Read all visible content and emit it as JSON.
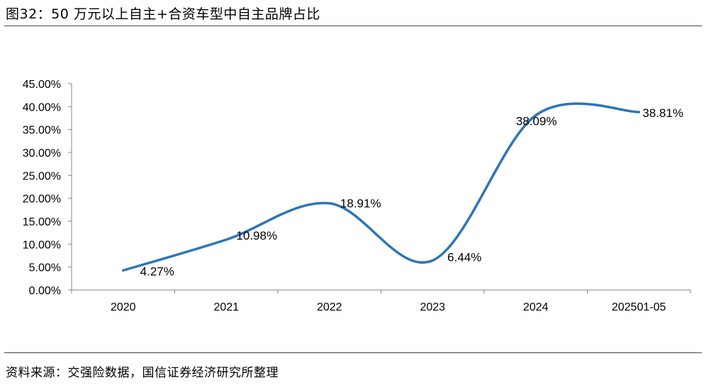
{
  "header": {
    "title": "图32：50 万元以上自主+合资车型中自主品牌占比"
  },
  "footer": {
    "source": "资料来源：交强险数据，国信证券经济研究所整理"
  },
  "chart_data": {
    "type": "line",
    "categories": [
      "2020",
      "2021",
      "2022",
      "2023",
      "2024",
      "202501-05"
    ],
    "values": [
      4.27,
      10.98,
      18.91,
      6.44,
      38.09,
      38.81
    ],
    "data_labels": [
      "4.27%",
      "10.98%",
      "18.91%",
      "6.44%",
      "38.09%",
      "38.81%"
    ],
    "ylim": [
      0,
      45
    ],
    "yticks": [
      "0.00%",
      "5.00%",
      "10.00%",
      "15.00%",
      "20.00%",
      "25.00%",
      "30.00%",
      "35.00%",
      "40.00%",
      "45.00%"
    ],
    "smooth": true,
    "grid": false,
    "legend": "none",
    "line_color": "#2E75B6"
  }
}
